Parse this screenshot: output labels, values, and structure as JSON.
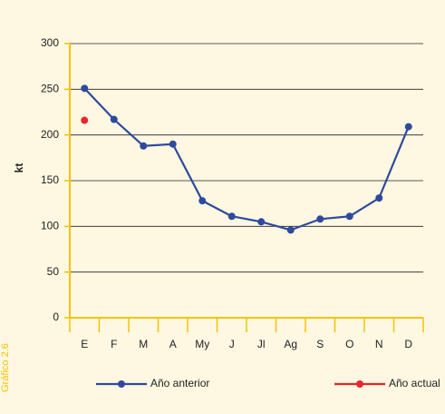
{
  "chart_data": {
    "type": "line",
    "side_label": "Gráfico 2.6",
    "y_label": "kt",
    "categories": [
      "E",
      "F",
      "M",
      "A",
      "My",
      "J",
      "Jl",
      "Ag",
      "S",
      "O",
      "N",
      "D"
    ],
    "series": [
      {
        "name": "Año anterior",
        "color": "#2e4a9e",
        "values": [
          251,
          217,
          188,
          190,
          128,
          111,
          105,
          96,
          108,
          111,
          131,
          209
        ]
      },
      {
        "name": "Año actual",
        "color": "#e8262b",
        "values": [
          216,
          null,
          null,
          null,
          null,
          null,
          null,
          null,
          null,
          null,
          null,
          null
        ]
      }
    ],
    "ylim": [
      0,
      300
    ],
    "yticks": [
      0,
      50,
      100,
      150,
      200,
      250,
      300
    ],
    "grid": true,
    "axis_color": "#f5c400"
  }
}
